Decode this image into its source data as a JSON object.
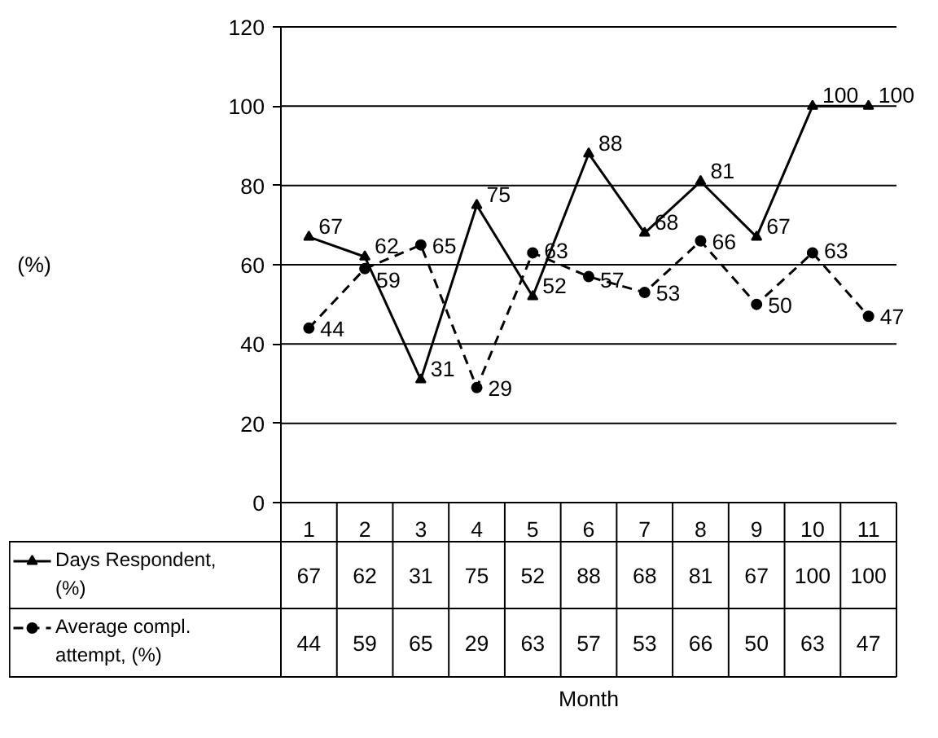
{
  "chart_data": {
    "type": "line",
    "annotations": [
      "(%)",
      "Month"
    ],
    "categories": [
      "1",
      "2",
      "3",
      "4",
      "5",
      "6",
      "7",
      "8",
      "9",
      "10",
      "11"
    ],
    "series": [
      {
        "name": "Days Respondent, (%)",
        "color": "#000000",
        "marker": "triangle",
        "line_style": "solid",
        "values": [
          67,
          62,
          31,
          75,
          52,
          88,
          68,
          81,
          67,
          100,
          100
        ],
        "value_labels": [
          "67",
          "62",
          "31",
          "75",
          "52",
          "88",
          "68",
          "81",
          "67",
          "100",
          "100"
        ]
      },
      {
        "name": "Average compl. attempt, (%)",
        "color": "#000000",
        "marker": "circle",
        "line_style": "dashed",
        "values": [
          44,
          59,
          65,
          29,
          63,
          57,
          53,
          66,
          50,
          63,
          47
        ],
        "value_labels": [
          "44",
          "59",
          "65",
          "29",
          "63",
          "57",
          "53",
          "66",
          "50",
          "63",
          "47"
        ]
      }
    ],
    "ylim": [
      0,
      120
    ],
    "yticks": [
      0,
      20,
      40,
      60,
      80,
      100,
      120
    ],
    "grid": "y",
    "legend": "bottom",
    "data_labels": true
  }
}
